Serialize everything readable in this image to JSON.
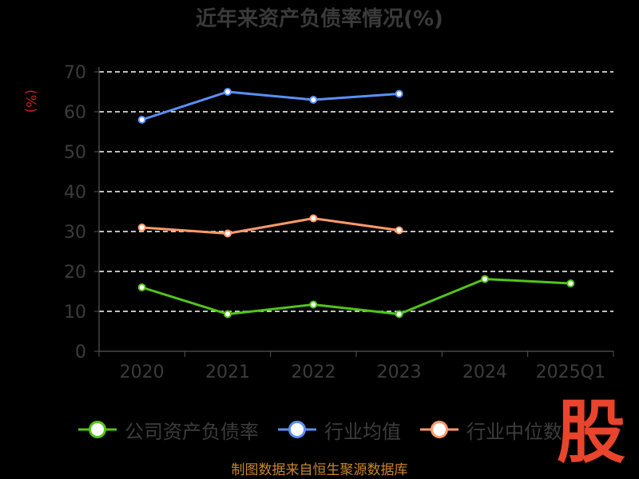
{
  "page": {
    "title": "近年来资产负债率情况(%)",
    "ylabel": "(%)",
    "source": "制图数据来自恒生聚源数据库",
    "brand": "股"
  },
  "chart_data": {
    "type": "line",
    "title": "近年来资产负债率情况(%)",
    "xlabel": "",
    "ylabel": "(%)",
    "categories": [
      "2020",
      "2021",
      "2022",
      "2023",
      "2024",
      "2025Q1"
    ],
    "ylim": [
      0,
      70
    ],
    "yticks": [
      0,
      10,
      20,
      30,
      40,
      50,
      60,
      70
    ],
    "grid": true,
    "legend_position": "bottom",
    "series": [
      {
        "name": "公司资产负债率",
        "color": "#52c41a",
        "values": [
          16.0,
          9.3,
          11.7,
          9.3,
          18.1,
          17.0
        ]
      },
      {
        "name": "行业均值",
        "color": "#5b8ff9",
        "values": [
          58.0,
          65.0,
          63.0,
          64.5,
          null,
          null
        ]
      },
      {
        "name": "行业中位数",
        "color": "#ff9a6a",
        "values": [
          31.0,
          29.5,
          33.3,
          30.3,
          null,
          null
        ]
      }
    ]
  }
}
